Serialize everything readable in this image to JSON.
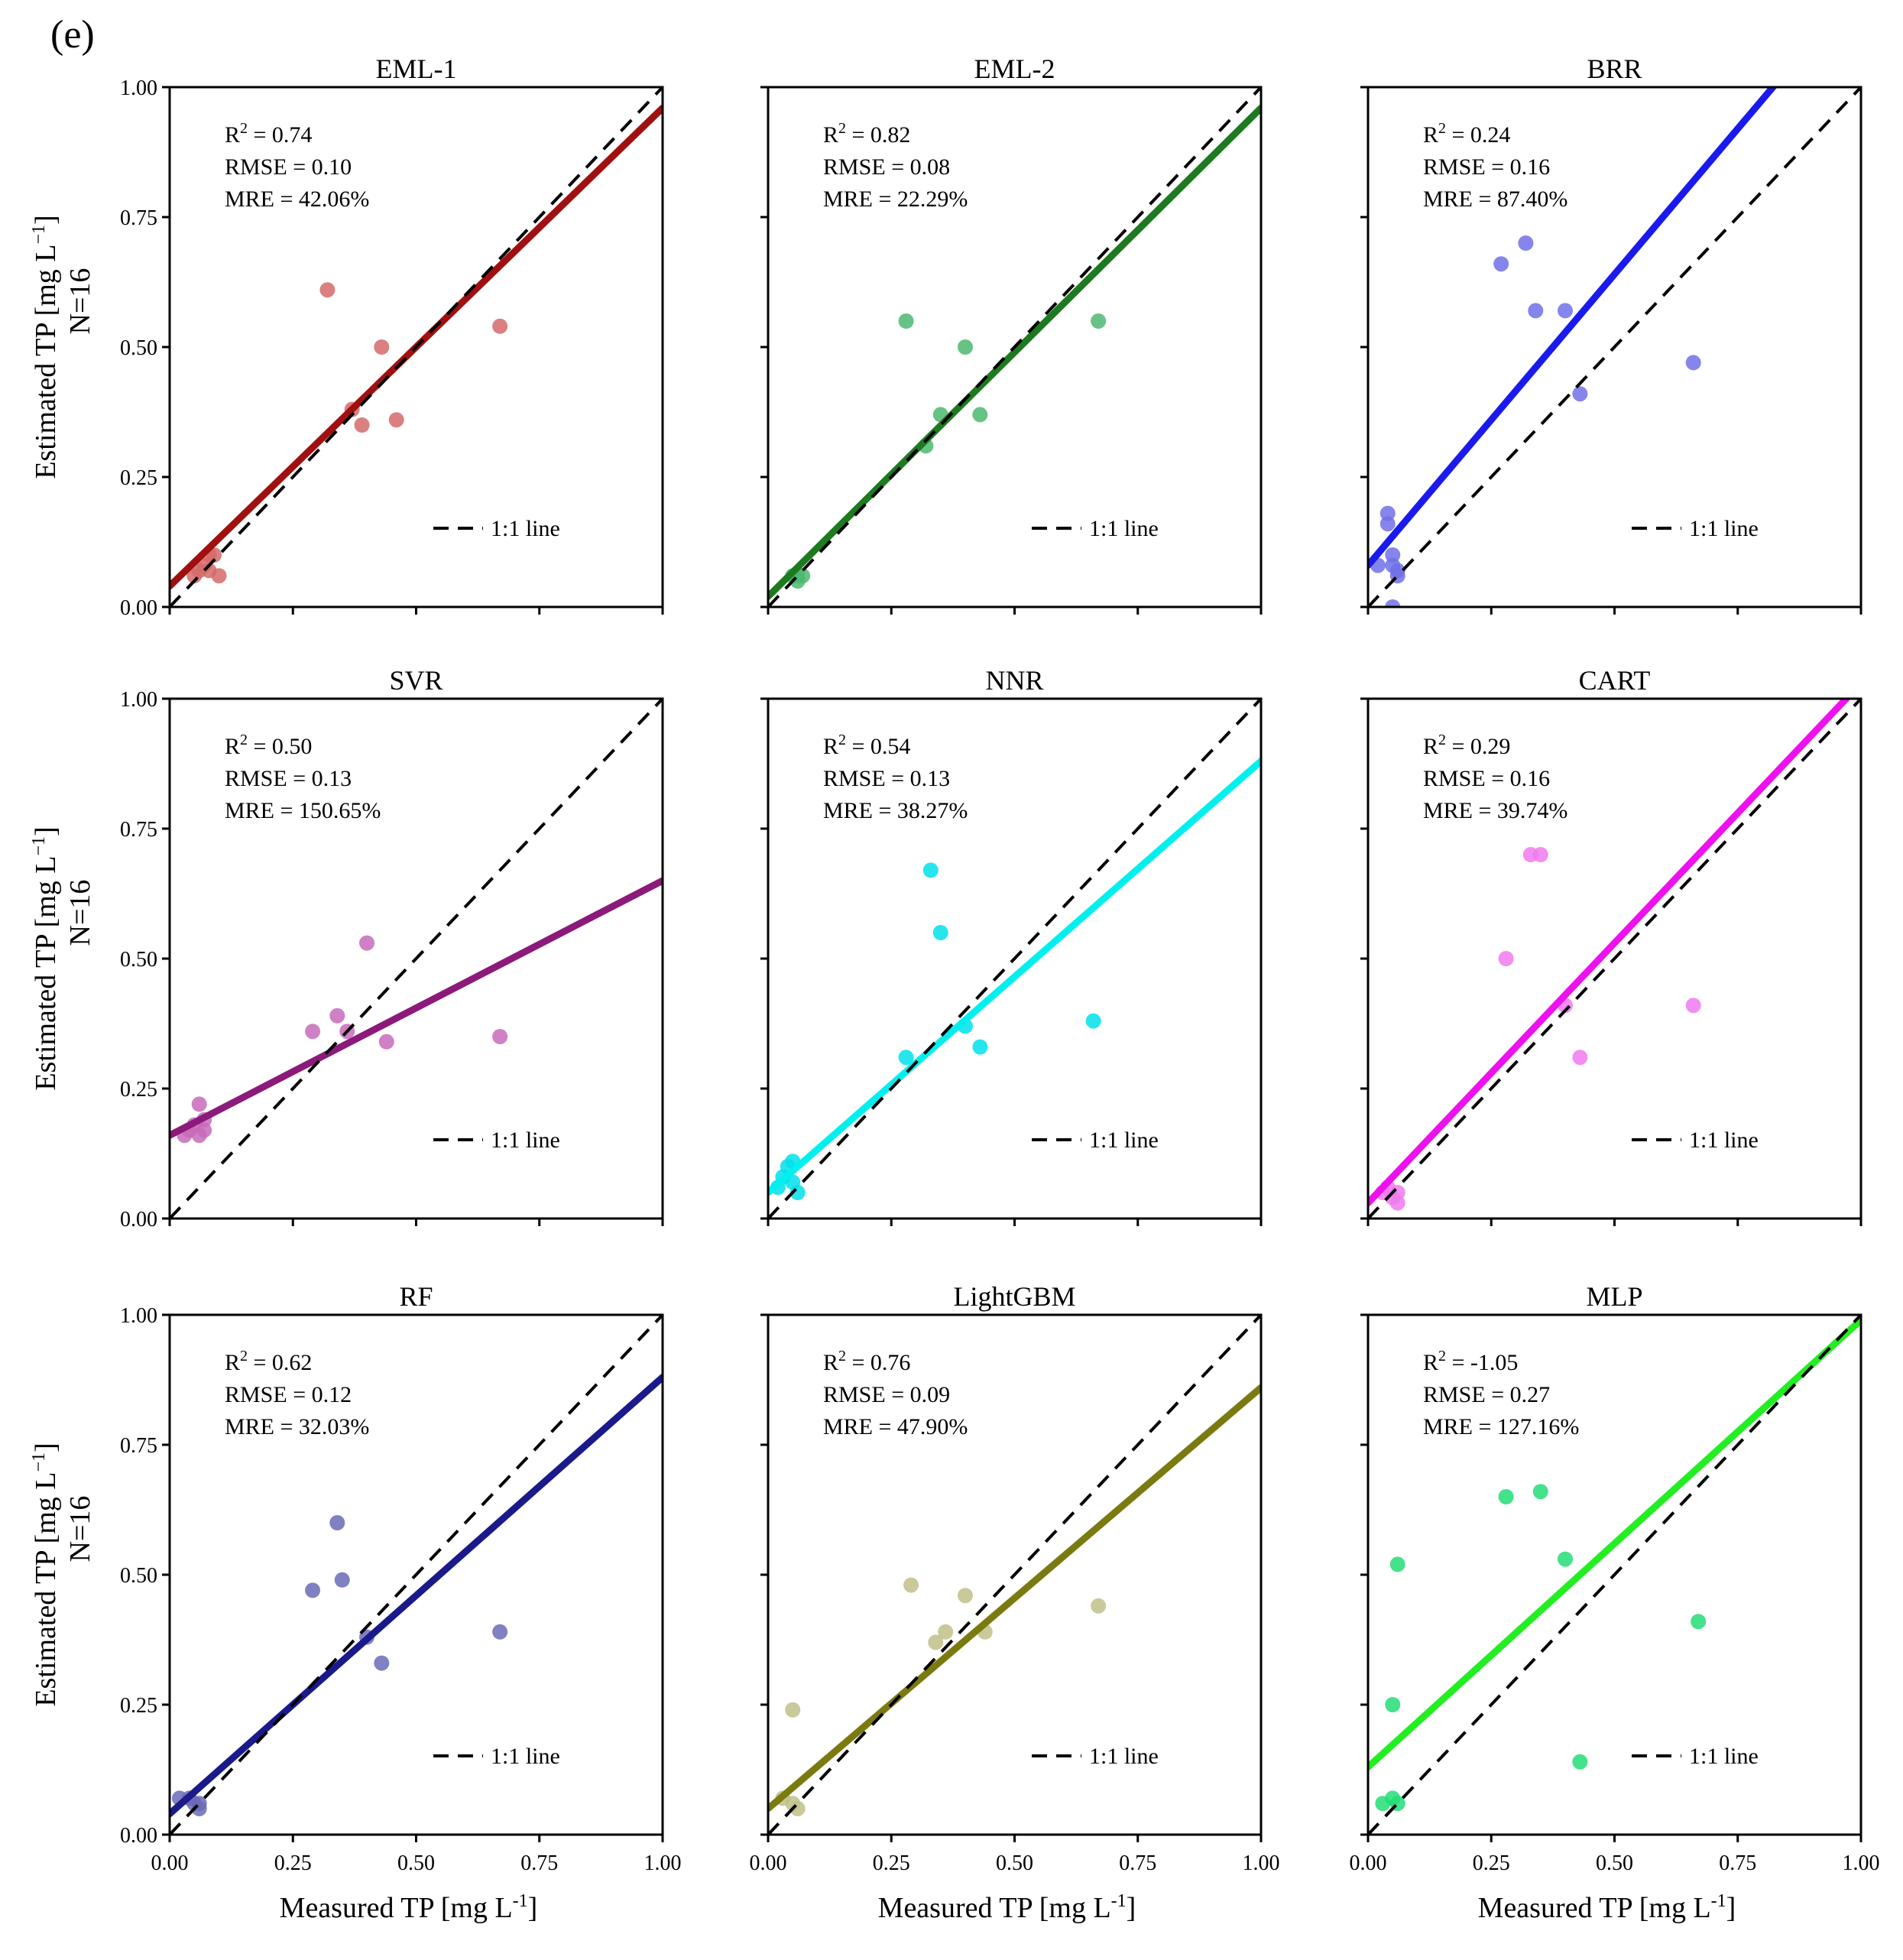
{
  "figure": {
    "panel_label": "(e)",
    "legend_label": "1:1 line",
    "y_label_prefix": "Estimated TP [mg L",
    "y_label_sup": "−1",
    "y_label_suffix": "]",
    "n_label": "N=16",
    "x_label_prefix": "Measured TP [mg L",
    "x_label_sup": "-1",
    "x_label_suffix": "]",
    "tick_labels": [
      "0.00",
      "0.25",
      "0.50",
      "0.75",
      "1.00"
    ],
    "r2_prefix": "R",
    "r2_sup": "2",
    "rmse_prefix": "RMSE = ",
    "mre_prefix": "MRE = "
  },
  "chart_data": [
    {
      "type": "scatter",
      "title": "EML-1",
      "color": "#a01010",
      "point_color": "#d46a6a",
      "r2": "0.74",
      "rmse": "0.10",
      "mre": "42.06%",
      "xlim": [
        0,
        1
      ],
      "ylim": [
        0,
        1
      ],
      "fit": {
        "intercept": 0.04,
        "slope": 0.92
      },
      "points": [
        [
          0.05,
          0.06
        ],
        [
          0.06,
          0.07
        ],
        [
          0.07,
          0.08
        ],
        [
          0.08,
          0.1
        ],
        [
          0.09,
          0.1
        ],
        [
          0.1,
          0.06
        ],
        [
          0.08,
          0.07
        ],
        [
          0.32,
          0.61
        ],
        [
          0.37,
          0.38
        ],
        [
          0.39,
          0.35
        ],
        [
          0.43,
          0.5
        ],
        [
          0.46,
          0.36
        ],
        [
          0.67,
          0.54
        ]
      ]
    },
    {
      "type": "scatter",
      "title": "EML-2",
      "color": "#1e7a1e",
      "point_color": "#4cb870",
      "r2": "0.82",
      "rmse": "0.08",
      "mre": "22.29%",
      "xlim": [
        0,
        1
      ],
      "ylim": [
        0,
        1
      ],
      "fit": {
        "intercept": 0.02,
        "slope": 0.94
      },
      "points": [
        [
          0.05,
          0.06
        ],
        [
          0.06,
          0.06
        ],
        [
          0.07,
          0.06
        ],
        [
          0.06,
          0.05
        ],
        [
          0.28,
          0.55
        ],
        [
          0.32,
          0.31
        ],
        [
          0.35,
          0.37
        ],
        [
          0.4,
          0.5
        ],
        [
          0.43,
          0.37
        ],
        [
          0.67,
          0.55
        ]
      ]
    },
    {
      "type": "scatter",
      "title": "BRR",
      "color": "#1a1aee",
      "point_color": "#7070e8",
      "r2": "0.24",
      "rmse": "0.16",
      "mre": "87.40%",
      "xlim": [
        0,
        1
      ],
      "ylim": [
        0,
        1
      ],
      "fit": {
        "intercept": 0.08,
        "slope": 1.12
      },
      "points": [
        [
          0.02,
          0.08
        ],
        [
          0.04,
          0.16
        ],
        [
          0.04,
          0.18
        ],
        [
          0.05,
          0.1
        ],
        [
          0.05,
          0.08
        ],
        [
          0.06,
          0.07
        ],
        [
          0.06,
          0.06
        ],
        [
          0.05,
          0.0
        ],
        [
          0.27,
          0.66
        ],
        [
          0.32,
          0.7
        ],
        [
          0.34,
          0.57
        ],
        [
          0.4,
          0.57
        ],
        [
          0.43,
          0.41
        ],
        [
          0.66,
          0.47
        ]
      ]
    },
    {
      "type": "scatter",
      "title": "SVR",
      "color": "#8b1a7a",
      "point_color": "#c86aba",
      "r2": "0.50",
      "rmse": "0.13",
      "mre": "150.65%",
      "xlim": [
        0,
        1
      ],
      "ylim": [
        0,
        1
      ],
      "fit": {
        "intercept": 0.16,
        "slope": 0.49
      },
      "points": [
        [
          0.03,
          0.16
        ],
        [
          0.04,
          0.17
        ],
        [
          0.05,
          0.18
        ],
        [
          0.06,
          0.16
        ],
        [
          0.06,
          0.22
        ],
        [
          0.07,
          0.17
        ],
        [
          0.07,
          0.19
        ],
        [
          0.29,
          0.36
        ],
        [
          0.34,
          0.39
        ],
        [
          0.36,
          0.36
        ],
        [
          0.4,
          0.53
        ],
        [
          0.44,
          0.34
        ],
        [
          0.67,
          0.35
        ]
      ]
    },
    {
      "type": "scatter",
      "title": "NNR",
      "color": "#00f0f0",
      "point_color": "#00e0ea",
      "r2": "0.54",
      "rmse": "0.13",
      "mre": "38.27%",
      "xlim": [
        0,
        1
      ],
      "ylim": [
        0,
        1
      ],
      "fit": {
        "intercept": 0.05,
        "slope": 0.83
      },
      "points": [
        [
          0.02,
          0.06
        ],
        [
          0.03,
          0.08
        ],
        [
          0.04,
          0.1
        ],
        [
          0.05,
          0.11
        ],
        [
          0.05,
          0.07
        ],
        [
          0.06,
          0.05
        ],
        [
          0.28,
          0.31
        ],
        [
          0.33,
          0.67
        ],
        [
          0.35,
          0.55
        ],
        [
          0.4,
          0.37
        ],
        [
          0.43,
          0.33
        ],
        [
          0.66,
          0.38
        ]
      ]
    },
    {
      "type": "scatter",
      "title": "CART",
      "color": "#ee10ee",
      "point_color": "#f07aee",
      "r2": "0.29",
      "rmse": "0.16",
      "mre": "39.74%",
      "xlim": [
        0,
        1
      ],
      "ylim": [
        0,
        1
      ],
      "fit": {
        "intercept": 0.03,
        "slope": 1.0
      },
      "points": [
        [
          0.03,
          0.05
        ],
        [
          0.04,
          0.06
        ],
        [
          0.05,
          0.04
        ],
        [
          0.06,
          0.03
        ],
        [
          0.06,
          0.05
        ],
        [
          0.28,
          0.5
        ],
        [
          0.33,
          0.7
        ],
        [
          0.35,
          0.7
        ],
        [
          0.4,
          0.41
        ],
        [
          0.43,
          0.31
        ],
        [
          0.66,
          0.41
        ]
      ]
    },
    {
      "type": "scatter",
      "title": "RF",
      "color": "#1a1a8a",
      "point_color": "#6a6ab8",
      "r2": "0.62",
      "rmse": "0.12",
      "mre": "32.03%",
      "xlim": [
        0,
        1
      ],
      "ylim": [
        0,
        1
      ],
      "fit": {
        "intercept": 0.04,
        "slope": 0.84
      },
      "points": [
        [
          0.02,
          0.07
        ],
        [
          0.04,
          0.07
        ],
        [
          0.05,
          0.06
        ],
        [
          0.06,
          0.05
        ],
        [
          0.06,
          0.06
        ],
        [
          0.29,
          0.47
        ],
        [
          0.34,
          0.6
        ],
        [
          0.35,
          0.49
        ],
        [
          0.4,
          0.38
        ],
        [
          0.43,
          0.33
        ],
        [
          0.67,
          0.39
        ]
      ]
    },
    {
      "type": "scatter",
      "title": "LightGBM",
      "color": "#7a7a10",
      "point_color": "#c0c088",
      "r2": "0.76",
      "rmse": "0.09",
      "mre": "47.90%",
      "xlim": [
        0,
        1
      ],
      "ylim": [
        0,
        1
      ],
      "fit": {
        "intercept": 0.05,
        "slope": 0.81
      },
      "points": [
        [
          0.03,
          0.07
        ],
        [
          0.05,
          0.06
        ],
        [
          0.06,
          0.05
        ],
        [
          0.05,
          0.24
        ],
        [
          0.29,
          0.48
        ],
        [
          0.34,
          0.37
        ],
        [
          0.36,
          0.39
        ],
        [
          0.4,
          0.46
        ],
        [
          0.44,
          0.39
        ],
        [
          0.67,
          0.44
        ]
      ]
    },
    {
      "type": "scatter",
      "title": "MLP",
      "color": "#22ee22",
      "point_color": "#22dd77",
      "r2": "-1.05",
      "rmse": "0.27",
      "mre": "127.16%",
      "xlim": [
        0,
        1
      ],
      "ylim": [
        0,
        1
      ],
      "fit": {
        "intercept": 0.13,
        "slope": 0.86
      },
      "points": [
        [
          0.03,
          0.06
        ],
        [
          0.05,
          0.07
        ],
        [
          0.06,
          0.06
        ],
        [
          0.06,
          0.52
        ],
        [
          0.05,
          0.25
        ],
        [
          0.28,
          0.65
        ],
        [
          0.35,
          0.66
        ],
        [
          0.4,
          0.53
        ],
        [
          0.43,
          0.14
        ],
        [
          0.67,
          0.41
        ]
      ]
    }
  ]
}
